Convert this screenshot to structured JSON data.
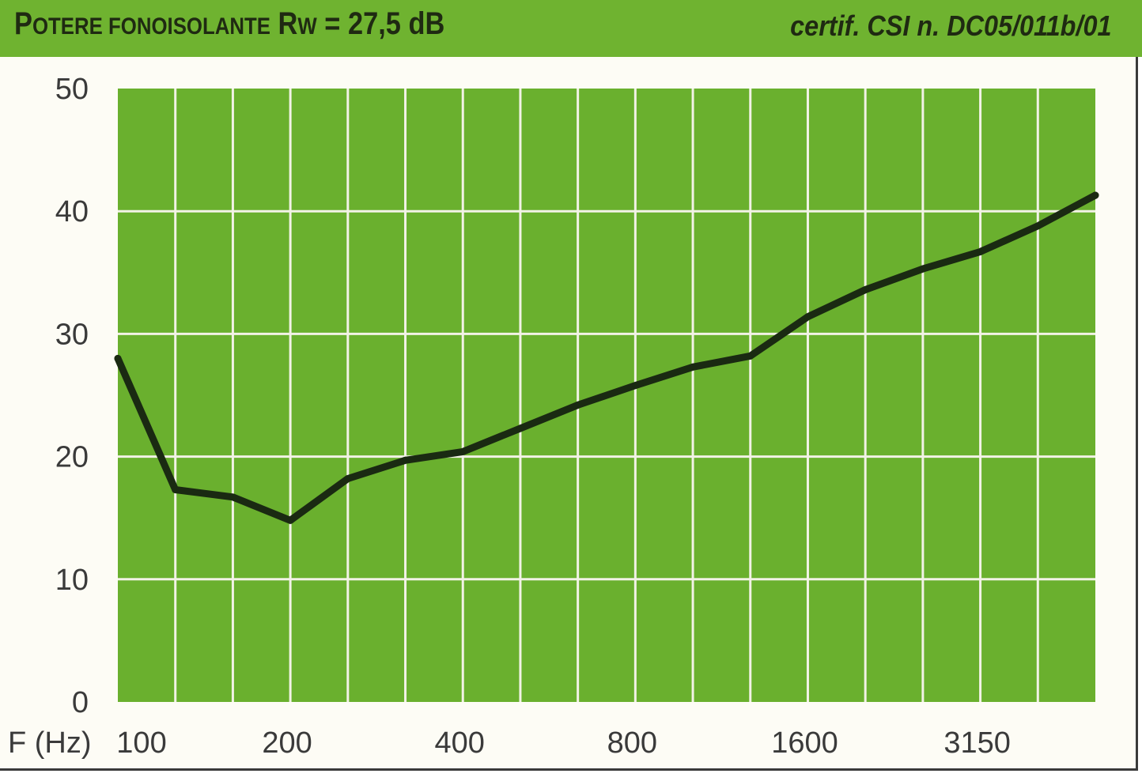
{
  "header": {
    "title_first": "P",
    "title_small": "OTERE FONOISOLANTE",
    "title_r": "R",
    "title_w": "W",
    "title_rest": " = 27,5 dB",
    "certif": "certif. CSI n. DC05/011b/01"
  },
  "colors": {
    "header_bg": "#6fb330",
    "plot_bg": "#6ab02e",
    "grid": "#f2f2e6",
    "line": "#1a2a12"
  },
  "chart_data": {
    "type": "line",
    "title": "",
    "xlabel": "F (Hz)",
    "ylabel": "",
    "ylim": [
      0,
      50
    ],
    "y_ticks": [
      "0",
      "10",
      "20",
      "30",
      "40",
      "50"
    ],
    "x_scale": "log (1/3 octave bands)",
    "x": [
      100,
      125,
      160,
      200,
      250,
      315,
      400,
      500,
      630,
      800,
      1000,
      1250,
      1600,
      2000,
      2500,
      3150,
      4000,
      5000
    ],
    "x_tick_labels": [
      "100",
      "200",
      "400",
      "800",
      "1600",
      "3150"
    ],
    "series": [
      {
        "values": [
          28,
          17.3,
          16.7,
          14.8,
          18.2,
          19.7,
          20.4,
          22.3,
          24.2,
          25.8,
          27.3,
          28.2,
          31.4,
          33.6,
          35.3,
          36.7,
          38.8,
          41.3
        ]
      }
    ]
  }
}
